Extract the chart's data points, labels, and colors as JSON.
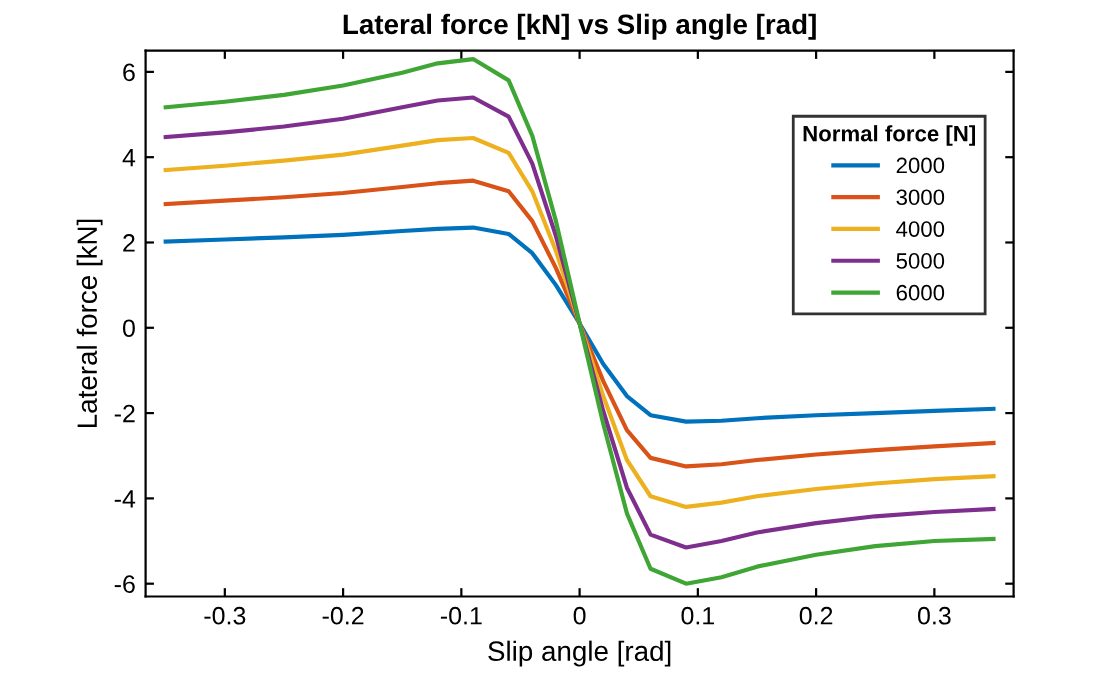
{
  "chart_data": {
    "type": "line",
    "title": "Lateral force [kN] vs Slip angle [rad]",
    "xlabel": "Slip angle [rad]",
    "ylabel": "Lateral force [kN]",
    "legend_title": "Normal force [N]",
    "x": [
      -0.35,
      -0.3,
      -0.25,
      -0.2,
      -0.15,
      -0.12,
      -0.09,
      -0.06,
      -0.04,
      -0.02,
      0,
      0.02,
      0.04,
      0.06,
      0.09,
      0.12,
      0.15,
      0.2,
      0.25,
      0.3,
      0.35
    ],
    "series": [
      {
        "name": "2000",
        "color": "#0072bd",
        "values": [
          2.02,
          2.07,
          2.12,
          2.18,
          2.27,
          2.32,
          2.35,
          2.2,
          1.75,
          1.0,
          0.1,
          -0.85,
          -1.6,
          -2.05,
          -2.2,
          -2.18,
          -2.12,
          -2.05,
          -2.0,
          -1.95,
          -1.9
        ]
      },
      {
        "name": "3000",
        "color": "#d95319",
        "values": [
          2.9,
          2.98,
          3.06,
          3.16,
          3.3,
          3.39,
          3.45,
          3.2,
          2.5,
          1.4,
          0.1,
          -1.25,
          -2.4,
          -3.05,
          -3.25,
          -3.2,
          -3.1,
          -2.97,
          -2.87,
          -2.78,
          -2.7
        ]
      },
      {
        "name": "4000",
        "color": "#edb120",
        "values": [
          3.7,
          3.8,
          3.92,
          4.06,
          4.27,
          4.4,
          4.45,
          4.1,
          3.2,
          1.8,
          0.1,
          -1.6,
          -3.1,
          -3.95,
          -4.2,
          -4.1,
          -3.95,
          -3.78,
          -3.65,
          -3.55,
          -3.48
        ]
      },
      {
        "name": "5000",
        "color": "#7e2f8e",
        "values": [
          4.47,
          4.58,
          4.72,
          4.9,
          5.17,
          5.33,
          5.4,
          4.95,
          3.85,
          2.15,
          0.1,
          -1.95,
          -3.75,
          -4.85,
          -5.15,
          -5.0,
          -4.8,
          -4.58,
          -4.42,
          -4.32,
          -4.25
        ]
      },
      {
        "name": "6000",
        "color": "#3fa535",
        "values": [
          5.17,
          5.3,
          5.46,
          5.68,
          5.98,
          6.2,
          6.3,
          5.8,
          4.5,
          2.5,
          0.1,
          -2.25,
          -4.35,
          -5.65,
          -6.0,
          -5.85,
          -5.6,
          -5.32,
          -5.12,
          -5.0,
          -4.95
        ]
      }
    ],
    "xlim": [
      -0.367,
      0.367
    ],
    "xticks": [
      -0.3,
      -0.2,
      -0.1,
      0,
      0.1,
      0.2,
      0.3
    ],
    "ylim": [
      -6.3,
      6.5
    ],
    "yticks": [
      -6,
      -4,
      -2,
      0,
      2,
      4,
      6
    ],
    "grid": false,
    "legend": "top right",
    "marker": "none",
    "line_style": "solid"
  }
}
